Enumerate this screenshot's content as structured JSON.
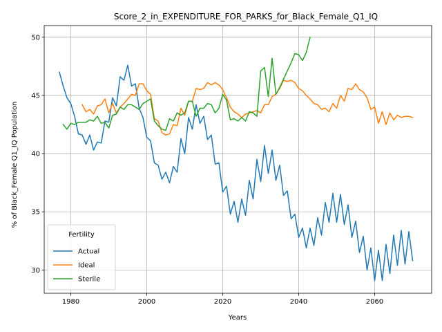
{
  "chart_data": {
    "type": "line",
    "title": "Score_2_in_EXPENDITURE_FOR_PARKS_for_Black_Female_Q1_IQ",
    "xlabel": "Years",
    "ylabel": "% of Black_Female Q1_IQ Population",
    "xlim": [
      1973,
      2075
    ],
    "ylim": [
      28,
      51
    ],
    "xticks": [
      1980,
      2000,
      2020,
      2040,
      2060
    ],
    "yticks": [
      30,
      35,
      40,
      45,
      50
    ],
    "grid": true,
    "legend": {
      "title": "Fertility",
      "placement": "lower-left"
    },
    "series": [
      {
        "name": "Actual",
        "color": "#1f77b4",
        "x": [
          1977,
          1978,
          1979,
          1980,
          1981,
          1982,
          1983,
          1984,
          1985,
          1986,
          1987,
          1988,
          1989,
          1990,
          1991,
          1992,
          1993,
          1994,
          1995,
          1996,
          1997,
          1998,
          1999,
          2000,
          2001,
          2002,
          2003,
          2004,
          2005,
          2006,
          2007,
          2008,
          2009,
          2010,
          2011,
          2012,
          2013,
          2014,
          2015,
          2016,
          2017,
          2018,
          2019,
          2020,
          2021,
          2022,
          2023,
          2024,
          2025,
          2026,
          2027,
          2028,
          2029,
          2030,
          2031,
          2032,
          2033,
          2034,
          2035,
          2036,
          2037,
          2038,
          2039,
          2040,
          2041,
          2042,
          2043,
          2044,
          2045,
          2046,
          2047,
          2048,
          2049,
          2050,
          2051,
          2052,
          2053,
          2054,
          2055,
          2056,
          2057,
          2058,
          2059,
          2060,
          2061,
          2062,
          2063,
          2064,
          2065,
          2066,
          2067,
          2068,
          2069,
          2070
        ],
        "y": [
          47.0,
          45.8,
          44.8,
          44.3,
          43.2,
          41.7,
          41.6,
          40.8,
          41.6,
          40.3,
          41.0,
          40.9,
          42.8,
          42.7,
          44.8,
          44.1,
          46.6,
          46.3,
          47.6,
          45.8,
          46.0,
          43.9,
          43.1,
          41.4,
          41.1,
          39.2,
          39.0,
          37.8,
          38.4,
          37.5,
          38.9,
          38.4,
          41.3,
          40.0,
          43.1,
          42.1,
          44.2,
          42.6,
          43.2,
          41.2,
          41.6,
          39.1,
          39.2,
          36.7,
          37.2,
          34.8,
          35.9,
          34.1,
          36.1,
          34.7,
          37.7,
          36.1,
          39.5,
          37.6,
          40.7,
          38.3,
          40.3,
          37.7,
          39.0,
          36.4,
          36.8,
          34.4,
          34.8,
          32.8,
          33.6,
          31.9,
          33.6,
          32.1,
          34.5,
          33.0,
          35.8,
          34.1,
          36.6,
          34.1,
          36.5,
          33.9,
          35.6,
          32.8,
          34.2,
          31.5,
          32.9,
          30.0,
          31.9,
          29.1,
          31.7,
          29.1,
          32.2,
          29.7,
          33.0,
          30.4,
          33.4,
          30.5,
          33.3,
          30.8
        ]
      },
      {
        "name": "Ideal",
        "color": "#ff7f0e",
        "x": [
          1983,
          1984,
          1985,
          1986,
          1987,
          1988,
          1989,
          1990,
          1991,
          1992,
          1993,
          1994,
          1995,
          1996,
          1997,
          1998,
          1999,
          2000,
          2001,
          2002,
          2003,
          2004,
          2005,
          2006,
          2007,
          2008,
          2009,
          2010,
          2011,
          2012,
          2013,
          2014,
          2015,
          2016,
          2017,
          2018,
          2019,
          2020,
          2021,
          2022,
          2023,
          2024,
          2025,
          2026,
          2027,
          2028,
          2029,
          2030,
          2031,
          2032,
          2033,
          2034,
          2035,
          2036,
          2037,
          2038,
          2039,
          2040,
          2041,
          2042,
          2043,
          2044,
          2045,
          2046,
          2047,
          2048,
          2049,
          2050,
          2051,
          2052,
          2053,
          2054,
          2055,
          2056,
          2057,
          2058,
          2059,
          2060,
          2061,
          2062,
          2063,
          2064,
          2065,
          2066,
          2067,
          2068,
          2069,
          2070
        ],
        "y": [
          44.2,
          43.6,
          43.8,
          43.4,
          44.1,
          44.2,
          44.7,
          43.5,
          44.3,
          43.5,
          44.0,
          44.3,
          44.7,
          45.1,
          45.0,
          46.0,
          46.0,
          45.4,
          45.1,
          43.0,
          42.8,
          41.8,
          41.6,
          41.7,
          42.5,
          42.4,
          43.9,
          43.3,
          44.5,
          44.5,
          45.6,
          45.5,
          45.6,
          46.1,
          45.9,
          46.1,
          45.9,
          45.5,
          44.8,
          44.0,
          43.6,
          43.4,
          43.1,
          43.4,
          43.5,
          43.6,
          43.7,
          43.5,
          44.2,
          44.2,
          44.9,
          45.1,
          45.6,
          46.3,
          46.2,
          46.3,
          46.1,
          45.6,
          45.4,
          45.0,
          44.7,
          44.3,
          44.2,
          43.8,
          43.9,
          43.6,
          44.3,
          43.9,
          45.0,
          44.5,
          45.6,
          45.5,
          46.0,
          45.5,
          45.3,
          44.8,
          43.8,
          44.0,
          42.6,
          43.6,
          42.5,
          43.5,
          42.9,
          43.3,
          43.1,
          43.2,
          43.2,
          43.1
        ]
      },
      {
        "name": "Sterile",
        "color": "#2ca02c",
        "x": [
          1978,
          1979,
          1980,
          1981,
          1982,
          1983,
          1984,
          1985,
          1986,
          1987,
          1988,
          1989,
          1990,
          1991,
          1992,
          1993,
          1994,
          1995,
          1996,
          1997,
          1998,
          1999,
          2000,
          2001,
          2002,
          2003,
          2004,
          2005,
          2006,
          2007,
          2008,
          2009,
          2010,
          2011,
          2012,
          2013,
          2014,
          2015,
          2016,
          2017,
          2018,
          2019,
          2020,
          2021,
          2022,
          2023,
          2024,
          2025,
          2026,
          2027,
          2028,
          2029,
          2030,
          2031,
          2032,
          2033,
          2034,
          2035,
          2036,
          2037,
          2038,
          2039,
          2040,
          2041,
          2042,
          2043
        ],
        "y": [
          42.5,
          42.1,
          42.6,
          42.5,
          42.7,
          42.7,
          42.7,
          42.9,
          42.8,
          43.2,
          42.6,
          42.7,
          42.2,
          43.3,
          43.4,
          44.0,
          43.8,
          44.2,
          44.2,
          44.0,
          43.8,
          44.3,
          44.5,
          44.7,
          42.8,
          42.4,
          42.1,
          42.0,
          43.0,
          42.8,
          43.5,
          43.3,
          43.5,
          44.5,
          44.5,
          43.2,
          43.9,
          43.9,
          44.3,
          44.2,
          43.5,
          43.9,
          45.1,
          44.6,
          42.9,
          43.0,
          42.8,
          43.1,
          42.8,
          43.6,
          43.5,
          43.2,
          47.1,
          47.4,
          44.9,
          48.2,
          45.1,
          45.7,
          46.4,
          47.1,
          47.8,
          48.6,
          48.5,
          48.0,
          48.7,
          50.0
        ]
      }
    ]
  }
}
